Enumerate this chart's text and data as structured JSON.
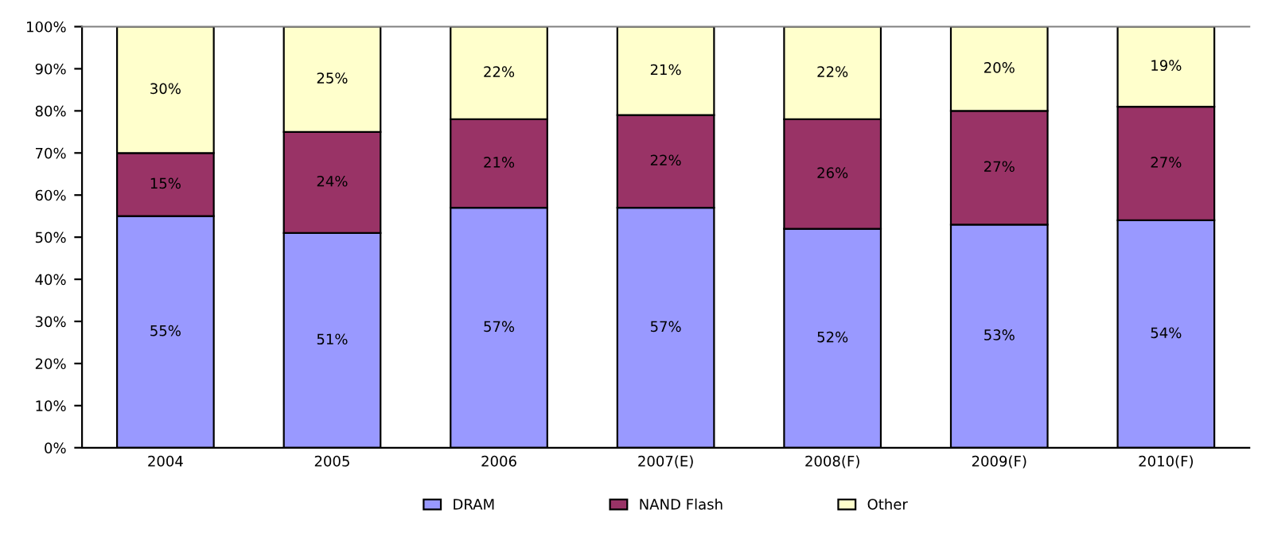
{
  "chart_data": {
    "type": "bar",
    "stacked": true,
    "categories": [
      "2004",
      "2005",
      "2006",
      "2007(E)",
      "2008(F)",
      "2009(F)",
      "2010(F)"
    ],
    "series": [
      {
        "name": "DRAM",
        "color": "#9999ff",
        "values": [
          55,
          51,
          57,
          57,
          52,
          53,
          54
        ],
        "value_labels": [
          "55%",
          "51%",
          "57%",
          "57%",
          "52%",
          "53%",
          "54%"
        ]
      },
      {
        "name": "NAND Flash",
        "color": "#993366",
        "values": [
          15,
          24,
          21,
          22,
          26,
          27,
          27
        ],
        "value_labels": [
          "15%",
          "24%",
          "21%",
          "22%",
          "26%",
          "27%",
          "27%"
        ]
      },
      {
        "name": "Other",
        "color": "#ffffcc",
        "values": [
          30,
          25,
          22,
          21,
          22,
          20,
          19
        ],
        "value_labels": [
          "30%",
          "25%",
          "22%",
          "21%",
          "22%",
          "20%",
          "19%"
        ]
      }
    ],
    "ylim": [
      0,
      100
    ],
    "yticks": [
      {
        "value": 0,
        "label": "0%"
      },
      {
        "value": 10,
        "label": "10%"
      },
      {
        "value": 20,
        "label": "20%"
      },
      {
        "value": 30,
        "label": "30%"
      },
      {
        "value": 40,
        "label": "40%"
      },
      {
        "value": 50,
        "label": "50%"
      },
      {
        "value": 60,
        "label": "60%"
      },
      {
        "value": 70,
        "label": "70%"
      },
      {
        "value": 80,
        "label": "80%"
      },
      {
        "value": 90,
        "label": "90%"
      },
      {
        "value": 100,
        "label": "100%"
      }
    ],
    "grid": false,
    "legend": "bottom"
  }
}
